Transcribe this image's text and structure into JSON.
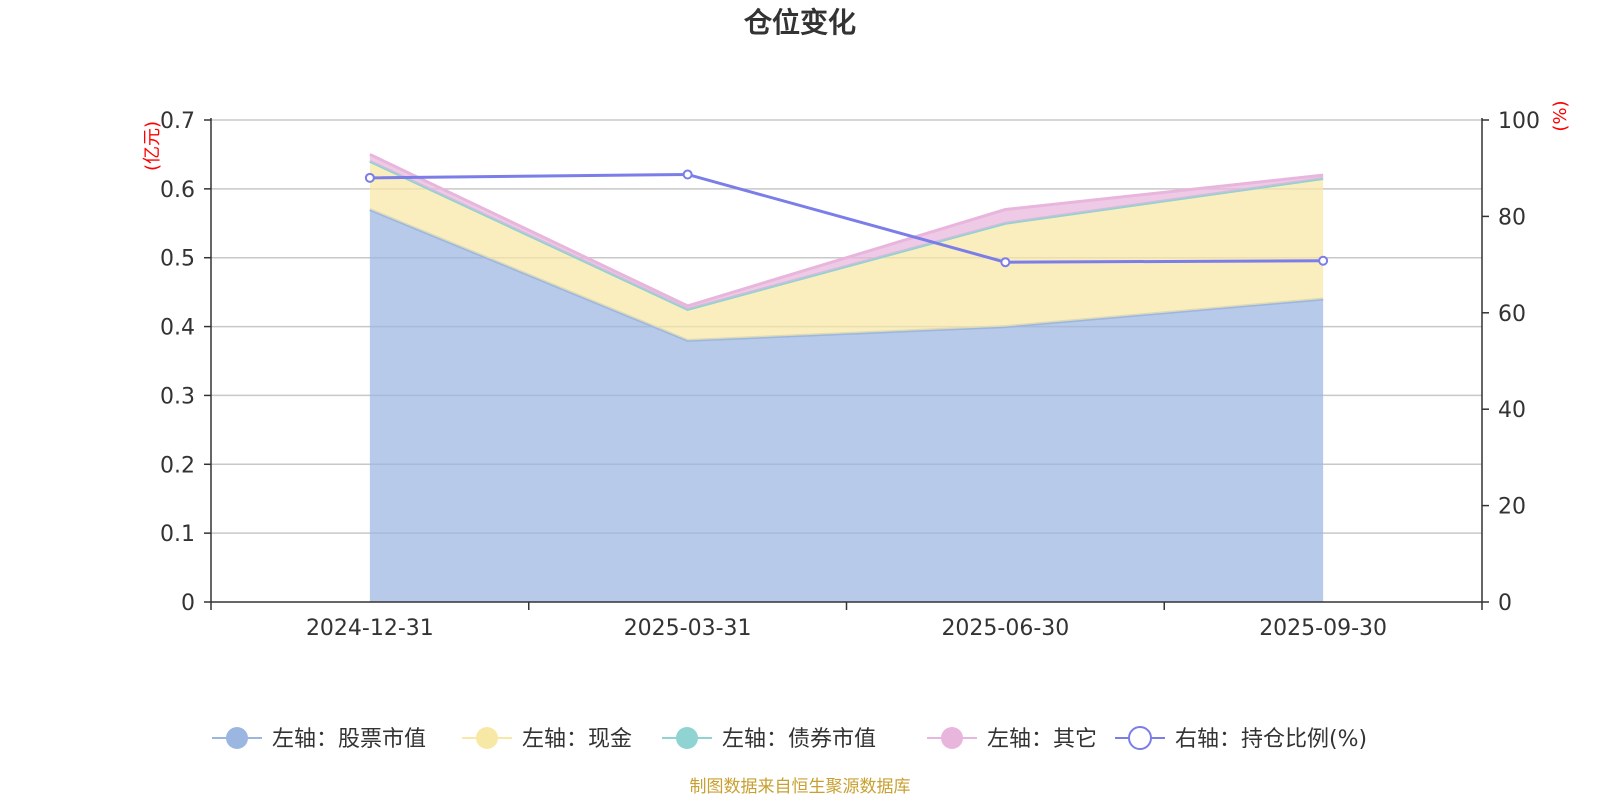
{
  "chart_data": {
    "type": "area",
    "title": "仓位变化",
    "categories": [
      "2024-12-31",
      "2025-03-31",
      "2025-06-30",
      "2025-09-30"
    ],
    "left_axis": {
      "unit": "(亿元)",
      "unit_color": "#ff0000",
      "ylim": [
        0,
        0.7
      ],
      "ticks": [
        "0",
        "0.1",
        "0.2",
        "0.3",
        "0.4",
        "0.5",
        "0.6",
        "0.7"
      ],
      "tick_values": [
        0,
        0.1,
        0.2,
        0.3,
        0.4,
        0.5,
        0.6,
        0.7
      ]
    },
    "right_axis": {
      "unit": "(%)",
      "unit_color": "#ff0000",
      "ylim": [
        0,
        100
      ],
      "ticks": [
        "0",
        "20",
        "40",
        "60",
        "80",
        "100"
      ],
      "tick_values": [
        0,
        20,
        40,
        60,
        80,
        100
      ]
    },
    "series": [
      {
        "name": "左轴：股票市值",
        "axis": "left",
        "stacked": true,
        "values": [
          0.57,
          0.38,
          0.4,
          0.44
        ],
        "color": "#9bb6e0"
      },
      {
        "name": "左轴：现金",
        "axis": "left",
        "stacked": true,
        "values": [
          0.07,
          0.045,
          0.15,
          0.175
        ],
        "color": "#f8e8a6"
      },
      {
        "name": "左轴：债券市值",
        "axis": "left",
        "stacked": true,
        "values": [
          0,
          0,
          0,
          0
        ],
        "color": "#8fd3d3"
      },
      {
        "name": "左轴：其它",
        "axis": "left",
        "stacked": true,
        "values": [
          0.01,
          0.005,
          0.02,
          0.005
        ],
        "color": "#e8b6dc"
      },
      {
        "name": "右轴：持仓比例(%)",
        "axis": "right",
        "stacked": false,
        "values": [
          88.0,
          88.7,
          70.5,
          70.8
        ],
        "color": "#7b7de8"
      }
    ],
    "grid": true,
    "legend_position": "bottom-center"
  },
  "source_note": {
    "text": "制图数据来自恒生聚源数据库",
    "color": "#c8a032"
  }
}
